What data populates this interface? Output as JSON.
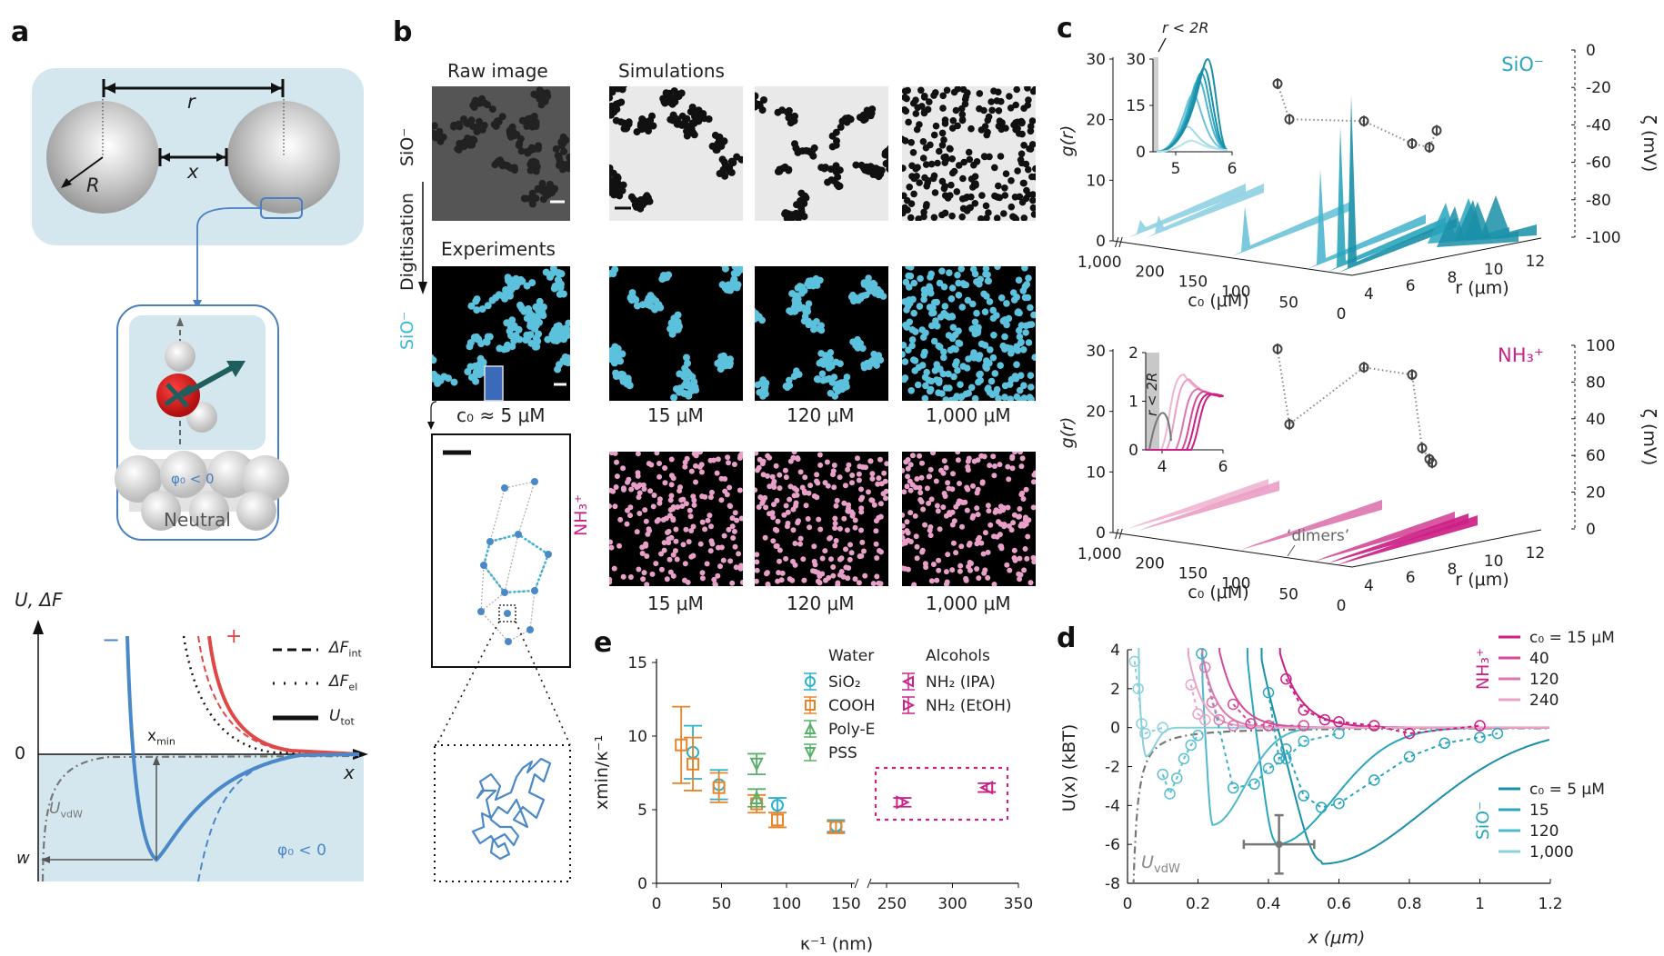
{
  "panels": {
    "a": {
      "label": "a",
      "schematic": {
        "r_label": "r",
        "x_label": "x",
        "R_label": "R"
      },
      "inset": {
        "phi_label": "φ₀ < 0",
        "caption": "Neutral"
      },
      "plot": {
        "ylabel": "U, ΔF",
        "xlabel": "x",
        "zero_label": "0",
        "xmin_label": "x",
        "xmin_sub": "min",
        "w_label": "w",
        "minus_sign": "−",
        "plus_sign": "+",
        "uvdw_label": "U",
        "uvdw_sub": "vdW",
        "phi_label": "φ₀ < 0",
        "legend": [
          {
            "style": "dashed",
            "label": "ΔF",
            "sub": "int"
          },
          {
            "style": "dotted",
            "label": "ΔF",
            "sub": "el"
          },
          {
            "style": "solid",
            "label": "U",
            "sub": "tot"
          }
        ]
      }
    },
    "b": {
      "label": "b",
      "raw_title": "Raw image",
      "sim_title": "Simulations",
      "exp_title": "Experiments",
      "digitisation_label": "Digitisation",
      "row_label_sio": "SiO⁻",
      "row_label_nh3": "NH₃⁺",
      "exp_conc_label": "c₀ ≈ 5 μM",
      "concentrations": [
        "15 μM",
        "120 μM",
        "1,000 μM"
      ],
      "colors": {
        "sio": "#5bc1dc",
        "nh3": "#e8a0c8",
        "raw_bg": "#555555",
        "sim_bg": "#e8e8e8"
      }
    },
    "c": {
      "label": "c",
      "top": {
        "species": "SiO⁻",
        "ylabel": "g(r)",
        "yticks": [
          "30",
          "20",
          "10",
          "0"
        ],
        "zeta_label": "ζ (mV)",
        "zeta_ticks": [
          "0",
          "-20",
          "-40",
          "-60",
          "-80",
          "-100"
        ],
        "c0_label": "c₀ (μM)",
        "c0_ticks": [
          "1,000",
          "200",
          "150",
          "100",
          "50",
          "0"
        ],
        "r_label": "r (μm)",
        "r_ticks": [
          "4",
          "6",
          "8",
          "10",
          "12"
        ],
        "inset": {
          "annotation": "r < 2R",
          "yticks": [
            "30",
            "15",
            "0"
          ],
          "xticks": [
            "5",
            "6"
          ]
        },
        "zeta_points": [
          {
            "c0": 1000,
            "zeta": -18
          },
          {
            "c0": 240,
            "zeta": -37
          },
          {
            "c0": 120,
            "zeta": -38
          },
          {
            "c0": 40,
            "zeta": -50
          },
          {
            "c0": 15,
            "zeta": -52
          },
          {
            "c0": 5,
            "zeta": -43
          }
        ]
      },
      "bottom": {
        "species": "NH₃⁺",
        "ylabel": "g(r)",
        "yticks": [
          "30",
          "20",
          "10",
          "0"
        ],
        "zeta_label": "ζ (mV)",
        "zeta_ticks": [
          "100",
          "80",
          "40",
          "60",
          "20",
          "0"
        ],
        "c0_label": "c₀ (μM)",
        "c0_ticks": [
          "1,000",
          "200",
          "150",
          "100",
          "50",
          "0"
        ],
        "r_label": "r (μm)",
        "r_ticks": [
          "4",
          "6",
          "8",
          "10",
          "12"
        ],
        "dimers_label": "‘dimers’",
        "inset": {
          "annotation": "r < 2R",
          "yticks": [
            "2",
            "1",
            "0"
          ],
          "xticks": [
            "4",
            "6"
          ]
        }
      }
    },
    "e": {
      "label": "e"
    },
    "d": {
      "label": "d"
    }
  },
  "chart_data": [
    {
      "id": "panel-e",
      "type": "scatter",
      "title": "",
      "xlabel": "κ⁻¹ (nm)",
      "ylabel": "x_min/κ⁻¹",
      "xticks": [
        "0",
        "50",
        "100",
        "150",
        "250",
        "300",
        "350"
      ],
      "yticks": [
        "0",
        "5",
        "10",
        "15"
      ],
      "ylim": [
        0,
        15
      ],
      "xlim_segments": [
        [
          0,
          160
        ],
        [
          240,
          350
        ]
      ],
      "legend_groups": [
        {
          "title": "Water",
          "entries": [
            "SiO₂",
            "COOH",
            "Poly-E",
            "PSS"
          ]
        },
        {
          "title": "Alcohols",
          "entries": [
            "NH₂ (IPA)",
            "NH₂ (EtOH)"
          ]
        }
      ],
      "legend_placement": "top-right",
      "series": [
        {
          "name": "SiO₂",
          "marker": "circle",
          "color": "#2bb0cc",
          "points": [
            {
              "x": 28,
              "y": 8.9,
              "err": 1.8
            },
            {
              "x": 48,
              "y": 6.7,
              "err": 1.0
            },
            {
              "x": 93,
              "y": 5.3,
              "err": 0.5
            },
            {
              "x": 138,
              "y": 3.9,
              "err": 0.4
            }
          ]
        },
        {
          "name": "COOH",
          "marker": "square",
          "color": "#e8852a",
          "points": [
            {
              "x": 19,
              "y": 9.4,
              "err": 2.6
            },
            {
              "x": 28,
              "y": 8.1,
              "err": 1.8
            },
            {
              "x": 48,
              "y": 6.5,
              "err": 1.0
            },
            {
              "x": 77,
              "y": 5.4,
              "err": 0.6
            },
            {
              "x": 93,
              "y": 4.3,
              "err": 0.5
            },
            {
              "x": 138,
              "y": 3.8,
              "err": 0.4
            }
          ]
        },
        {
          "name": "Poly-E",
          "marker": "triangle-up",
          "color": "#58b06a",
          "points": [
            {
              "x": 77,
              "y": 5.8,
              "err": 0.6
            }
          ]
        },
        {
          "name": "PSS",
          "marker": "triangle-down",
          "color": "#58b06a",
          "points": [
            {
              "x": 77,
              "y": 8.1,
              "err": 0.7
            }
          ]
        },
        {
          "name": "NH₂ (IPA)",
          "marker": "triangle-left",
          "color": "#cc2288",
          "points": [
            {
              "x": 326,
              "y": 6.5,
              "err": 0.3
            }
          ]
        },
        {
          "name": "NH₂ (EtOH)",
          "marker": "triangle-right",
          "color": "#cc2288",
          "points": [
            {
              "x": 262,
              "y": 5.5,
              "err": 0.3
            }
          ]
        }
      ]
    },
    {
      "id": "panel-d",
      "type": "line",
      "title": "",
      "xlabel": "x (μm)",
      "ylabel": "U(x) (k_B T)",
      "xticks": [
        "0",
        "0.2",
        "0.4",
        "0.6",
        "0.8",
        "1",
        "1.2"
      ],
      "yticks": [
        "4",
        "2",
        "0",
        "-2",
        "-4",
        "-6",
        "-8"
      ],
      "xlim": [
        0,
        1.2
      ],
      "ylim": [
        -8,
        4
      ],
      "uvdw_label": "U",
      "uvdw_sub": "vdW",
      "legend_nh3": {
        "species": "NH₃⁺",
        "entries": [
          "c₀ = 15 μM",
          "40",
          "120",
          "240"
        ],
        "colors": [
          "#cc1f86",
          "#d54a9a",
          "#dd77b0",
          "#e8a5c8"
        ]
      },
      "legend_sio": {
        "species": "SiO⁻",
        "entries": [
          "c₀ = 5 μM",
          "15",
          "120",
          "1,000"
        ],
        "colors": [
          "#1a8fa8",
          "#2aa5bd",
          "#4fb8cc",
          "#8cd0de"
        ]
      },
      "series": [
        {
          "name": "SiO⁻ 5 μM",
          "color": "#1a8fa8",
          "x_min": 0.55,
          "depth": -7.0,
          "wall": 0.38,
          "decay": 0.32
        },
        {
          "name": "SiO⁻ 15 μM",
          "color": "#2aa5bd",
          "x_min": 0.42,
          "depth": -6.0,
          "wall": 0.34,
          "decay": 0.18
        },
        {
          "name": "SiO⁻ 120 μM",
          "color": "#4fb8cc",
          "x_min": 0.24,
          "depth": -5.0,
          "wall": 0.21,
          "decay": 0.1
        },
        {
          "name": "SiO⁻ 1,000 μM",
          "color": "#8cd0de",
          "x_min": 0.05,
          "depth": -1.5,
          "wall": 0.03,
          "decay": 0.03
        },
        {
          "name": "NH₃⁺ 15 μM",
          "color": "#cc1f86",
          "wall": 0.43,
          "decay": 0.06
        },
        {
          "name": "NH₃⁺ 40 μM",
          "color": "#d54a9a",
          "wall": 0.26,
          "decay": 0.05
        },
        {
          "name": "NH₃⁺ 120 μM",
          "color": "#dd77b0",
          "wall": 0.21,
          "decay": 0.04
        },
        {
          "name": "NH₃⁺ 240 μM",
          "color": "#e8a5c8",
          "wall": 0.17,
          "decay": 0.04
        }
      ],
      "experimental_points": [
        {
          "series": "SiO⁻ 5 μM",
          "color": "#2aa5bd",
          "points": [
            [
              0.4,
              1.8
            ],
            [
              0.43,
              -1.6
            ],
            [
              0.45,
              -1.1
            ],
            [
              0.5,
              -3.5
            ],
            [
              0.55,
              -4.1
            ],
            [
              0.6,
              -3.9
            ],
            [
              0.7,
              -2.7
            ],
            [
              0.8,
              -1.5
            ],
            [
              0.9,
              -0.8
            ],
            [
              1.0,
              -0.5
            ],
            [
              1.05,
              -0.3
            ]
          ]
        },
        {
          "series": "SiO⁻ 15 μM",
          "color": "#3ab0c6",
          "points": [
            [
              0.21,
              3.8
            ],
            [
              0.3,
              -3.1
            ],
            [
              0.36,
              -2.9
            ],
            [
              0.4,
              -2.1
            ],
            [
              0.45,
              -1.6
            ],
            [
              0.5,
              -0.7
            ],
            [
              0.6,
              -0.3
            ]
          ]
        },
        {
          "series": "SiO⁻ 120 μM",
          "color": "#5cbfd2",
          "points": [
            [
              0.1,
              -2.4
            ],
            [
              0.12,
              -3.4
            ],
            [
              0.14,
              -2.6
            ],
            [
              0.16,
              -1.6
            ],
            [
              0.18,
              -0.9
            ],
            [
              0.2,
              -0.4
            ]
          ]
        },
        {
          "series": "SiO⁻ 1,000 μM",
          "color": "#8cd0de",
          "points": [
            [
              0.02,
              3.4
            ],
            [
              0.03,
              2.0
            ],
            [
              0.04,
              0.2
            ],
            [
              0.05,
              -0.3
            ],
            [
              0.1,
              0
            ]
          ]
        },
        {
          "series": "NH₃⁺ 15 μM",
          "color": "#cc1f86",
          "points": [
            [
              0.45,
              2.5
            ],
            [
              0.5,
              0.9
            ],
            [
              0.56,
              0.4
            ],
            [
              0.6,
              0.3
            ],
            [
              0.7,
              0.1
            ],
            [
              0.8,
              -0.3
            ],
            [
              1.0,
              0.1
            ]
          ]
        },
        {
          "series": "NH₃⁺ 40 μM",
          "color": "#d54a9a",
          "points": [
            [
              0.3,
              1.2
            ],
            [
              0.35,
              0.2
            ],
            [
              0.4,
              0.1
            ],
            [
              0.5,
              0.1
            ]
          ]
        },
        {
          "series": "NH₃⁺ 120 μM",
          "color": "#dd77b0",
          "points": [
            [
              0.22,
              3.1
            ],
            [
              0.24,
              1.3
            ],
            [
              0.26,
              0.4
            ],
            [
              0.3,
              0.1
            ]
          ]
        },
        {
          "series": "NH₃⁺ 240 μM",
          "color": "#e8a5c8",
          "points": [
            [
              0.18,
              2.2
            ],
            [
              0.2,
              0.7
            ],
            [
              0.22,
              0.4
            ]
          ]
        }
      ],
      "reference_point": {
        "x": 0.43,
        "y": -6.0,
        "xerr": 0.1,
        "yerr": 1.5
      }
    }
  ]
}
